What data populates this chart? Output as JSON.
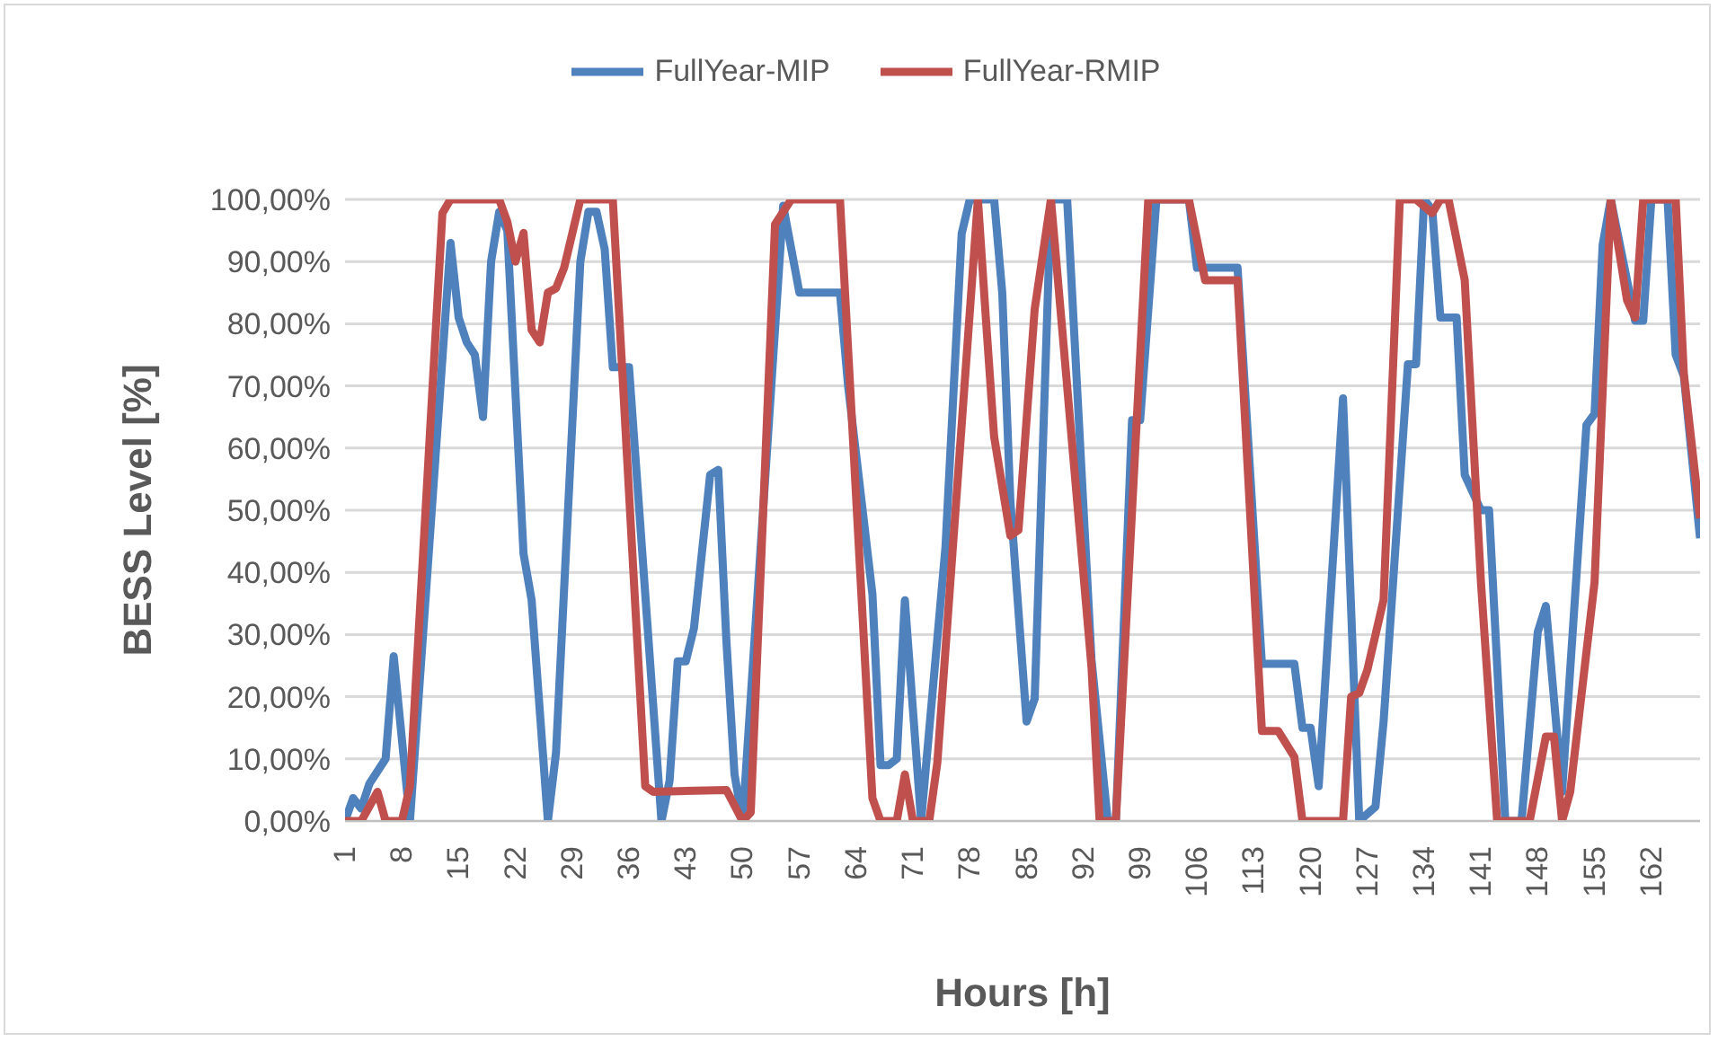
{
  "chart_data": {
    "type": "line",
    "xlabel": "Hours [h]",
    "ylabel": "BESS Level [%]",
    "xlim": [
      1,
      168
    ],
    "xticks": [
      1,
      8,
      15,
      22,
      29,
      36,
      43,
      50,
      57,
      64,
      71,
      78,
      85,
      92,
      99,
      106,
      113,
      120,
      127,
      134,
      141,
      148,
      155,
      162
    ],
    "ylim": [
      0,
      100
    ],
    "yticks": [
      {
        "value": 0,
        "label": "0,00%"
      },
      {
        "value": 10,
        "label": "10,00%"
      },
      {
        "value": 20,
        "label": "20,00%"
      },
      {
        "value": 30,
        "label": "30,00%"
      },
      {
        "value": 40,
        "label": "40,00%"
      },
      {
        "value": 50,
        "label": "50,00%"
      },
      {
        "value": 60,
        "label": "60,00%"
      },
      {
        "value": 70,
        "label": "70,00%"
      },
      {
        "value": 80,
        "label": "80,00%"
      },
      {
        "value": 90,
        "label": "90,00%"
      },
      {
        "value": 100,
        "label": "100,00%"
      }
    ],
    "grid": "y",
    "legend": "top",
    "marker": "none",
    "line_style": "solid",
    "series": [
      {
        "name": "FullYear-MIP",
        "color": "#4f81bd",
        "x": [
          1,
          2,
          3,
          4,
          6,
          7,
          9,
          14,
          15,
          16,
          17,
          18,
          19,
          20,
          21,
          23,
          24,
          26,
          27,
          30,
          31,
          32,
          33,
          34,
          36,
          40,
          41,
          42,
          43,
          44,
          46,
          47,
          48,
          49,
          50,
          55,
          57,
          62,
          63,
          66,
          67,
          68,
          69,
          70,
          72,
          75,
          77,
          78,
          81,
          82,
          83,
          85,
          86,
          88,
          90,
          93,
          95,
          96,
          98,
          99,
          101,
          105,
          106,
          111,
          114,
          118,
          119,
          120,
          121,
          124,
          126,
          128,
          129,
          132,
          133,
          134,
          135,
          136,
          138,
          139,
          141,
          142,
          144,
          146,
          148,
          149,
          151,
          154,
          155,
          156,
          157,
          160,
          161,
          162,
          164,
          165,
          166,
          168
        ],
        "values": [
          0,
          3.7,
          2,
          6,
          10,
          26.5,
          0,
          93,
          81,
          77,
          75,
          65,
          90,
          98,
          95,
          43,
          35.5,
          0,
          11,
          90,
          98,
          98,
          92,
          73,
          73,
          0,
          6.5,
          25.7,
          25.7,
          31,
          55.7,
          56.5,
          29,
          7.5,
          0,
          99,
          85,
          85,
          70,
          36.5,
          9,
          9,
          10,
          35.5,
          0,
          44,
          94.5,
          100,
          100,
          85,
          51.5,
          16,
          19.7,
          100,
          100,
          26,
          0,
          0,
          64.5,
          64.5,
          100,
          100,
          89,
          89,
          25.3,
          25.3,
          15,
          15,
          5.6,
          68,
          0,
          2.3,
          16,
          73.5,
          73.5,
          100,
          98.3,
          81,
          81,
          55.7,
          50,
          50,
          0,
          0,
          30.4,
          34.6,
          4.7,
          63.7,
          65.5,
          92.7,
          100,
          80.5,
          80.5,
          100,
          100,
          75,
          71.6,
          45.5
        ]
      },
      {
        "name": "FullYear-RMIP",
        "color": "#c0504d",
        "x": [
          1,
          3,
          5,
          6,
          8,
          9,
          13,
          14,
          20,
          21,
          22,
          23,
          24,
          25,
          26,
          27,
          28,
          30,
          34,
          38,
          39,
          48,
          50,
          51,
          54,
          56,
          62,
          66,
          67,
          69,
          70,
          71,
          73,
          74,
          79,
          80,
          81,
          83,
          84,
          86,
          88,
          93,
          94,
          96,
          100,
          105,
          107,
          111,
          114,
          116,
          118,
          119,
          124,
          125,
          126,
          127,
          129,
          131,
          133,
          135,
          136,
          137,
          139,
          141,
          143,
          147,
          149,
          150,
          151,
          152,
          155,
          157,
          159,
          160,
          161,
          165,
          166,
          168
        ],
        "values": [
          0,
          0,
          4.7,
          0,
          0,
          5.6,
          97.8,
          100,
          100,
          96.4,
          90,
          94.6,
          79,
          77,
          85,
          85.7,
          89,
          100,
          100,
          5.6,
          4.7,
          5,
          0,
          1.4,
          96,
          100,
          100,
          3.7,
          0,
          0,
          7.5,
          0,
          0,
          9.4,
          100,
          80.5,
          61.8,
          45.9,
          46.8,
          82.4,
          100,
          24.8,
          0,
          0,
          100,
          100,
          87,
          87,
          14.5,
          14.5,
          10.3,
          0,
          0,
          20,
          20.6,
          24.3,
          35.6,
          100,
          100,
          97.8,
          100,
          100,
          87,
          38.4,
          0,
          0,
          13.6,
          13.6,
          0,
          4.7,
          38.4,
          100,
          83.8,
          81,
          100,
          100,
          72,
          48.7
        ]
      }
    ]
  }
}
